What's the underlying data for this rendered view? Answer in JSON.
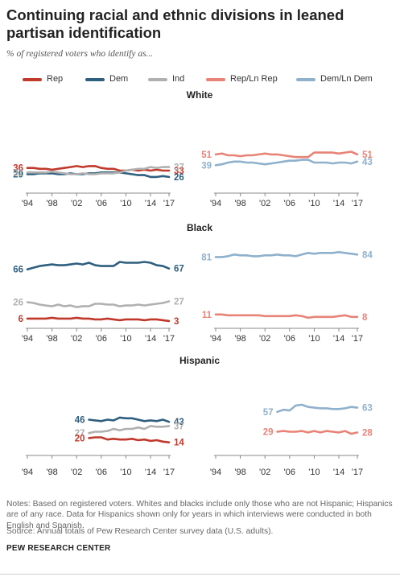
{
  "title": "Continuing racial and ethnic divisions in leaned partisan identification",
  "subtitle": "% of registered voters who identify as...",
  "legend": [
    {
      "label": "Rep",
      "color": "#c0392b"
    },
    {
      "label": "Dem",
      "color": "#2e5f7f"
    },
    {
      "label": "Ind",
      "color": "#b0b0b0"
    },
    {
      "label": "Rep/Ln Rep",
      "color": "#e88377"
    },
    {
      "label": "Dem/Ln Dem",
      "color": "#8fb1cc"
    }
  ],
  "notes": "Notes: Based on registered voters. Whites and blacks include only those who are not Hispanic; Hispanics are of any race. Data for Hispanics shown only for years in which interviews were conducted in both English and Spanish.",
  "source": "Source: Annual totals of Pew Research Center survey data (U.S. adults).",
  "credit": "PEW RESEARCH CENTER",
  "x_tick_labels": [
    "'94",
    "'98",
    "'02",
    "'06",
    "'10",
    "'14",
    "'17"
  ],
  "chart_data": [
    {
      "type": "line",
      "group": "White",
      "panel": "left",
      "xlim": [
        1994,
        2017
      ],
      "ylim": [
        0,
        100
      ],
      "series": [
        {
          "name": "Rep",
          "color": "#c0392b",
          "x": [
            1994,
            1995,
            1996,
            1997,
            1998,
            1999,
            2000,
            2001,
            2002,
            2003,
            2004,
            2005,
            2006,
            2007,
            2008,
            2009,
            2010,
            2011,
            2012,
            2013,
            2014,
            2015,
            2016,
            2017
          ],
          "y": [
            36,
            36,
            35,
            35,
            34,
            35,
            36,
            37,
            38,
            37,
            38,
            38,
            36,
            35,
            35,
            33,
            33,
            34,
            33,
            34,
            33,
            34,
            33,
            33
          ],
          "start_label": "36",
          "end_label": "33"
        },
        {
          "name": "Dem",
          "color": "#2e5f7f",
          "x": [
            1994,
            1995,
            1996,
            1997,
            1998,
            1999,
            2000,
            2001,
            2002,
            2003,
            2004,
            2005,
            2006,
            2007,
            2008,
            2009,
            2010,
            2011,
            2012,
            2013,
            2014,
            2015,
            2016,
            2017
          ],
          "y": [
            29,
            29,
            30,
            30,
            30,
            29,
            29,
            30,
            29,
            29,
            30,
            30,
            31,
            31,
            31,
            31,
            30,
            29,
            28,
            28,
            26,
            26,
            27,
            26
          ],
          "start_label": "29",
          "end_label": "26"
        },
        {
          "name": "Ind",
          "color": "#b0b0b0",
          "x": [
            1994,
            1995,
            1996,
            1997,
            1998,
            1999,
            2000,
            2001,
            2002,
            2003,
            2004,
            2005,
            2006,
            2007,
            2008,
            2009,
            2010,
            2011,
            2012,
            2013,
            2014,
            2015,
            2016,
            2017
          ],
          "y": [
            31,
            31,
            31,
            31,
            32,
            31,
            30,
            29,
            29,
            30,
            29,
            29,
            30,
            30,
            30,
            31,
            33,
            34,
            35,
            35,
            37,
            36,
            37,
            37
          ],
          "start_label": "31",
          "end_label": "37"
        }
      ]
    },
    {
      "type": "line",
      "group": "White",
      "panel": "right",
      "xlim": [
        1994,
        2017
      ],
      "ylim": [
        0,
        100
      ],
      "series": [
        {
          "name": "Rep/Ln Rep",
          "color": "#e88377",
          "x": [
            1994,
            1995,
            1996,
            1997,
            1998,
            1999,
            2000,
            2001,
            2002,
            2003,
            2004,
            2005,
            2006,
            2007,
            2008,
            2009,
            2010,
            2011,
            2012,
            2013,
            2014,
            2015,
            2016,
            2017
          ],
          "y": [
            51,
            52,
            50,
            50,
            49,
            50,
            50,
            51,
            52,
            51,
            51,
            50,
            49,
            48,
            48,
            48,
            53,
            53,
            53,
            53,
            52,
            53,
            54,
            51
          ],
          "start_label": "51",
          "end_label": "51"
        },
        {
          "name": "Dem/Ln Dem",
          "color": "#8fb1cc",
          "x": [
            1994,
            1995,
            1996,
            1997,
            1998,
            1999,
            2000,
            2001,
            2002,
            2003,
            2004,
            2005,
            2006,
            2007,
            2008,
            2009,
            2010,
            2011,
            2012,
            2013,
            2014,
            2015,
            2016,
            2017
          ],
          "y": [
            39,
            40,
            42,
            43,
            43,
            42,
            42,
            41,
            40,
            41,
            42,
            43,
            44,
            44,
            45,
            45,
            42,
            42,
            42,
            41,
            42,
            42,
            41,
            43
          ],
          "start_label": "39",
          "end_label": "43"
        }
      ]
    },
    {
      "type": "line",
      "group": "Black",
      "panel": "left",
      "xlim": [
        1994,
        2017
      ],
      "ylim": [
        0,
        100
      ],
      "series": [
        {
          "name": "Dem",
          "color": "#2e5f7f",
          "x": [
            1994,
            1995,
            1996,
            1997,
            1998,
            1999,
            2000,
            2001,
            2002,
            2003,
            2004,
            2005,
            2006,
            2007,
            2008,
            2009,
            2010,
            2011,
            2012,
            2013,
            2014,
            2015,
            2016,
            2017
          ],
          "y": [
            66,
            68,
            70,
            71,
            72,
            71,
            71,
            72,
            73,
            72,
            74,
            71,
            70,
            70,
            70,
            75,
            74,
            74,
            74,
            75,
            74,
            71,
            70,
            67
          ],
          "start_label": "66",
          "end_label": "67"
        },
        {
          "name": "Ind",
          "color": "#b0b0b0",
          "x": [
            1994,
            1995,
            1996,
            1997,
            1998,
            1999,
            2000,
            2001,
            2002,
            2003,
            2004,
            2005,
            2006,
            2007,
            2008,
            2009,
            2010,
            2011,
            2012,
            2013,
            2014,
            2015,
            2016,
            2017
          ],
          "y": [
            26,
            25,
            23,
            22,
            21,
            23,
            21,
            22,
            20,
            21,
            21,
            24,
            24,
            23,
            23,
            21,
            22,
            22,
            23,
            22,
            23,
            24,
            25,
            27
          ],
          "start_label": "26",
          "end_label": "27"
        },
        {
          "name": "Rep",
          "color": "#c0392b",
          "x": [
            1994,
            1995,
            1996,
            1997,
            1998,
            1999,
            2000,
            2001,
            2002,
            2003,
            2004,
            2005,
            2006,
            2007,
            2008,
            2009,
            2010,
            2011,
            2012,
            2013,
            2014,
            2015,
            2016,
            2017
          ],
          "y": [
            6,
            6,
            6,
            6,
            7,
            6,
            6,
            6,
            7,
            6,
            6,
            5,
            5,
            6,
            5,
            4,
            5,
            5,
            5,
            4,
            5,
            5,
            4,
            3
          ],
          "start_label": "6",
          "end_label": "3"
        }
      ]
    },
    {
      "type": "line",
      "group": "Black",
      "panel": "right",
      "xlim": [
        1994,
        2017
      ],
      "ylim": [
        0,
        100
      ],
      "series": [
        {
          "name": "Dem/Ln Dem",
          "color": "#8fb1cc",
          "x": [
            1994,
            1995,
            1996,
            1997,
            1998,
            1999,
            2000,
            2001,
            2002,
            2003,
            2004,
            2005,
            2006,
            2007,
            2008,
            2009,
            2010,
            2011,
            2012,
            2013,
            2014,
            2015,
            2016,
            2017
          ],
          "y": [
            81,
            81,
            82,
            84,
            83,
            83,
            82,
            82,
            83,
            83,
            84,
            83,
            83,
            82,
            84,
            86,
            85,
            86,
            86,
            86,
            87,
            86,
            85,
            84
          ],
          "start_label": "81",
          "end_label": "84"
        },
        {
          "name": "Rep/Ln Rep",
          "color": "#e88377",
          "x": [
            1994,
            1995,
            1996,
            1997,
            1998,
            1999,
            2000,
            2001,
            2002,
            2003,
            2004,
            2005,
            2006,
            2007,
            2008,
            2009,
            2010,
            2011,
            2012,
            2013,
            2014,
            2015,
            2016,
            2017
          ],
          "y": [
            11,
            11,
            10,
            10,
            10,
            10,
            10,
            10,
            9,
            9,
            9,
            9,
            9,
            10,
            9,
            7,
            8,
            8,
            8,
            8,
            9,
            10,
            8,
            8
          ],
          "start_label": "11",
          "end_label": "8"
        }
      ]
    },
    {
      "type": "line",
      "group": "Hispanic",
      "panel": "left",
      "xlim": [
        1994,
        2017
      ],
      "ylim": [
        0,
        100
      ],
      "series": [
        {
          "name": "Dem",
          "color": "#2e5f7f",
          "x": [
            2004,
            2005,
            2006,
            2007,
            2008,
            2009,
            2010,
            2011,
            2012,
            2013,
            2014,
            2015,
            2016,
            2017
          ],
          "y": [
            46,
            45,
            44,
            46,
            45,
            49,
            48,
            48,
            46,
            44,
            45,
            44,
            46,
            43
          ],
          "start_label": "46",
          "end_label": "43"
        },
        {
          "name": "Ind",
          "color": "#b0b0b0",
          "x": [
            2004,
            2005,
            2006,
            2007,
            2008,
            2009,
            2010,
            2011,
            2012,
            2013,
            2014,
            2015,
            2016,
            2017
          ],
          "y": [
            27,
            29,
            29,
            30,
            33,
            31,
            33,
            33,
            35,
            33,
            37,
            36,
            36,
            37
          ],
          "start_label": "27",
          "end_label": "37"
        },
        {
          "name": "Rep",
          "color": "#c0392b",
          "x": [
            2004,
            2005,
            2006,
            2007,
            2008,
            2009,
            2010,
            2011,
            2012,
            2013,
            2014,
            2015,
            2016,
            2017
          ],
          "y": [
            20,
            21,
            21,
            18,
            19,
            18,
            18,
            19,
            17,
            18,
            16,
            17,
            15,
            14
          ],
          "start_label": "20",
          "end_label": "14"
        }
      ]
    },
    {
      "type": "line",
      "group": "Hispanic",
      "panel": "right",
      "xlim": [
        1994,
        2017
      ],
      "ylim": [
        0,
        100
      ],
      "series": [
        {
          "name": "Dem/Ln Dem",
          "color": "#8fb1cc",
          "x": [
            2004,
            2005,
            2006,
            2007,
            2008,
            2009,
            2010,
            2011,
            2012,
            2013,
            2014,
            2015,
            2016,
            2017
          ],
          "y": [
            57,
            60,
            59,
            66,
            67,
            64,
            63,
            62,
            62,
            61,
            61,
            62,
            64,
            63
          ],
          "start_label": "57",
          "end_label": "63"
        },
        {
          "name": "Rep/Ln Rep",
          "color": "#e88377",
          "x": [
            2004,
            2005,
            2006,
            2007,
            2008,
            2009,
            2010,
            2011,
            2012,
            2013,
            2014,
            2015,
            2016,
            2017
          ],
          "y": [
            29,
            30,
            29,
            29,
            30,
            28,
            30,
            28,
            30,
            29,
            28,
            30,
            26,
            28
          ],
          "start_label": "29",
          "end_label": "28"
        }
      ]
    }
  ]
}
